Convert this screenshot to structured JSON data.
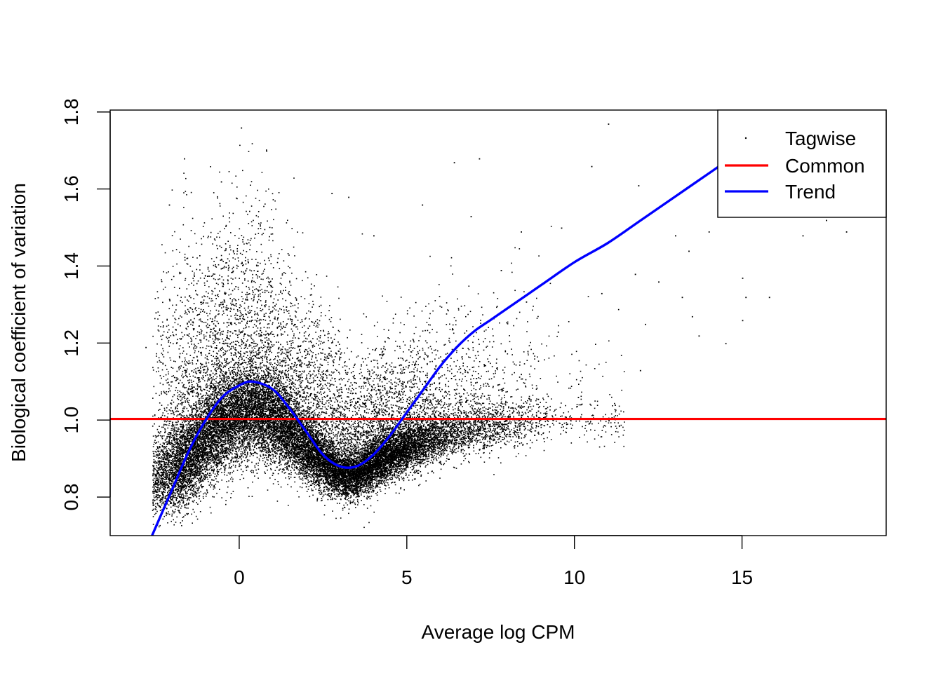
{
  "chart_data": {
    "type": "scatter",
    "title": "",
    "xlabel": "Average log CPM",
    "ylabel": "Biological coefficient of variation",
    "xlim": [
      -3.85,
      19.3
    ],
    "ylim": [
      0.7,
      1.805
    ],
    "x_ticks": [
      0,
      5,
      10,
      15
    ],
    "x_tick_labels": [
      "0",
      "5",
      "10",
      "15"
    ],
    "y_ticks": [
      0.8,
      1.0,
      1.2,
      1.4,
      1.6,
      1.8
    ],
    "y_tick_labels": [
      "0.8",
      "1.0",
      "1.2",
      "1.4",
      "1.6",
      "1.8"
    ],
    "legend_position": "top-right",
    "series": [
      {
        "name": "Tagwise",
        "kind": "points",
        "color": "#000000",
        "outlier_points": [
          [
            -2.8,
            1.19
          ],
          [
            -2.5,
            1.28
          ],
          [
            -2.1,
            1.56
          ],
          [
            -1.65,
            1.68
          ],
          [
            -0.55,
            1.62
          ],
          [
            0.05,
            1.76
          ],
          [
            0.8,
            1.7
          ],
          [
            2.75,
            1.59
          ],
          [
            3.25,
            1.58
          ],
          [
            4.0,
            1.48
          ],
          [
            5.45,
            1.56
          ],
          [
            6.4,
            1.67
          ],
          [
            6.9,
            1.53
          ],
          [
            7.15,
            1.68
          ],
          [
            7.8,
            1.39
          ],
          [
            8.4,
            1.49
          ],
          [
            8.4,
            1.12
          ],
          [
            9.5,
            1.23
          ],
          [
            9.6,
            1.5
          ],
          [
            10.1,
            1.06
          ],
          [
            10.5,
            1.66
          ],
          [
            10.8,
            1.33
          ],
          [
            11.0,
            1.77
          ],
          [
            11.2,
            1.04
          ],
          [
            11.8,
            1.38
          ],
          [
            11.9,
            1.61
          ],
          [
            11.95,
            1.13
          ],
          [
            12.1,
            1.25
          ],
          [
            12.5,
            1.36
          ],
          [
            13.0,
            1.48
          ],
          [
            13.2,
            1.32
          ],
          [
            13.4,
            1.44
          ],
          [
            13.5,
            1.27
          ],
          [
            13.7,
            1.22
          ],
          [
            14.0,
            1.49
          ],
          [
            14.5,
            1.2
          ],
          [
            15.0,
            1.37
          ],
          [
            15.0,
            1.26
          ],
          [
            15.1,
            1.32
          ],
          [
            15.8,
            1.32
          ],
          [
            16.0,
            1.58
          ],
          [
            16.8,
            1.48
          ],
          [
            17.5,
            1.52
          ],
          [
            18.1,
            1.49
          ]
        ]
      },
      {
        "name": "Common",
        "kind": "hline",
        "color": "#ff0000",
        "y": 1.003
      },
      {
        "name": "Trend",
        "kind": "line",
        "color": "#0000ff",
        "x": [
          -2.6,
          -2.0,
          -1.5,
          -1.0,
          -0.5,
          0.0,
          0.4,
          1.0,
          1.5,
          2.0,
          2.5,
          3.0,
          3.5,
          4.0,
          4.5,
          5.0,
          5.5,
          6.0,
          6.5,
          7.0,
          7.5,
          8.0,
          9.0,
          10.0,
          11.0,
          12.0,
          13.0,
          14.0,
          14.5
        ],
        "y": [
          0.7,
          0.82,
          0.92,
          1.0,
          1.06,
          1.09,
          1.1,
          1.08,
          1.03,
          0.97,
          0.91,
          0.88,
          0.88,
          0.91,
          0.96,
          1.02,
          1.08,
          1.14,
          1.19,
          1.23,
          1.26,
          1.29,
          1.35,
          1.41,
          1.46,
          1.52,
          1.58,
          1.64,
          1.67
        ]
      }
    ],
    "density_profile": {
      "x": [
        -2.5,
        -2.0,
        -1.5,
        -1.0,
        -0.5,
        0.0,
        0.5,
        1.0,
        1.5,
        2.0,
        2.5,
        3.0,
        3.5,
        4.0,
        4.5,
        5.0,
        6.0,
        7.0,
        8.0,
        9.0,
        10.0,
        11.0
      ],
      "center": [
        0.85,
        0.87,
        0.9,
        0.95,
        0.99,
        1.02,
        1.02,
        1.0,
        0.97,
        0.93,
        0.89,
        0.86,
        0.86,
        0.89,
        0.91,
        0.93,
        0.96,
        0.98,
        0.99,
        1.0,
        1.0,
        1.0
      ]
    }
  }
}
